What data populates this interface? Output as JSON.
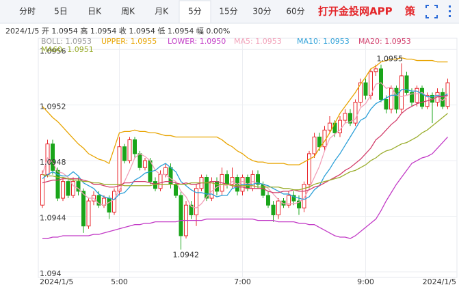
{
  "tabs": [
    "分时",
    "5日",
    "日K",
    "周K",
    "月K",
    "5分",
    "15分",
    "30分",
    "60分"
  ],
  "active_tab": 5,
  "app_link": "打开金投网APP",
  "strategy": "策",
  "info": "2024/1/5  开 1.0954  高 1.0954  收 1.0954  低 1.0954  幅 0.00%",
  "boll_label": "BOLL: 1.0953",
  "chart_data": {
    "type": "candlestick",
    "up_color": "#e8262b",
    "down_color": "#1aa51a",
    "grid": true,
    "ylim": [
      1.09397,
      1.09568
    ],
    "yticks": [
      1.094,
      1.0944,
      1.0948,
      1.0952,
      1.0956
    ],
    "high_label": "1.0955",
    "low_label": "1.0942",
    "categories": [
      "2024/1/5",
      null,
      null,
      null,
      null,
      null,
      null,
      null,
      null,
      null,
      null,
      null,
      null,
      null,
      null,
      "5:00",
      null,
      null,
      null,
      null,
      null,
      null,
      null,
      null,
      null,
      null,
      null,
      null,
      null,
      null,
      null,
      null,
      null,
      null,
      null,
      null,
      null,
      null,
      null,
      "7:00",
      null,
      null,
      null,
      null,
      null,
      null,
      null,
      null,
      null,
      null,
      null,
      null,
      null,
      null,
      null,
      null,
      null,
      null,
      null,
      null,
      null,
      null,
      null,
      "9:00",
      null,
      null,
      null,
      null,
      null,
      null,
      null,
      null,
      null,
      null,
      null,
      null,
      null,
      null,
      null,
      "2024/1/5"
    ],
    "ohlc": [
      [
        1.09448,
        1.09473,
        1.09446,
        1.0947
      ],
      [
        1.0947,
        1.09495,
        1.09468,
        1.09492
      ],
      [
        1.09492,
        1.09495,
        1.0947,
        1.09473
      ],
      [
        1.09473,
        1.09475,
        1.09451,
        1.09453
      ],
      [
        1.09453,
        1.09468,
        1.09451,
        1.09465
      ],
      [
        1.09465,
        1.09468,
        1.09453,
        1.09455
      ],
      [
        1.09455,
        1.09468,
        1.09453,
        1.09465
      ],
      [
        1.09465,
        1.09468,
        1.09455,
        1.09458
      ],
      [
        1.09458,
        1.0946,
        1.09428,
        1.09433
      ],
      [
        1.09433,
        1.09453,
        1.09431,
        1.09451
      ],
      [
        1.09451,
        1.09458,
        1.09448,
        1.09455
      ],
      [
        1.09455,
        1.09458,
        1.09446,
        1.09448
      ],
      [
        1.09448,
        1.09455,
        1.09446,
        1.09453
      ],
      [
        1.09453,
        1.09455,
        1.09438,
        1.09443
      ],
      [
        1.09443,
        1.0946,
        1.09441,
        1.09458
      ],
      [
        1.09458,
        1.09497,
        1.09455,
        1.0949
      ],
      [
        1.0949,
        1.09492,
        1.09478,
        1.0948
      ],
      [
        1.0948,
        1.09497,
        1.09478,
        1.09495
      ],
      [
        1.09495,
        1.09497,
        1.09482,
        1.09485
      ],
      [
        1.09485,
        1.09487,
        1.09473,
        1.09475
      ],
      [
        1.09475,
        1.09482,
        1.09473,
        1.0948
      ],
      [
        1.0948,
        1.09482,
        1.09463,
        1.09465
      ],
      [
        1.09465,
        1.09468,
        1.09458,
        1.0946
      ],
      [
        1.0946,
        1.09473,
        1.09458,
        1.0947
      ],
      [
        1.0947,
        1.09478,
        1.09468,
        1.09475
      ],
      [
        1.09475,
        1.09478,
        1.0946,
        1.09463
      ],
      [
        1.09463,
        1.09465,
        1.09453,
        1.09455
      ],
      [
        1.09455,
        1.09458,
        1.09416,
        1.09426
      ],
      [
        1.09426,
        1.09451,
        1.09424,
        1.09448
      ],
      [
        1.09448,
        1.09451,
        1.09438,
        1.09441
      ],
      [
        1.09441,
        1.09463,
        1.09433,
        1.0946
      ],
      [
        1.0946,
        1.0947,
        1.09458,
        1.09468
      ],
      [
        1.09468,
        1.0947,
        1.09451,
        1.09453
      ],
      [
        1.09453,
        1.09468,
        1.09451,
        1.09465
      ],
      [
        1.09465,
        1.09468,
        1.09455,
        1.09458
      ],
      [
        1.09458,
        1.09475,
        1.09455,
        1.0947
      ],
      [
        1.0947,
        1.09473,
        1.0946,
        1.09463
      ],
      [
        1.09463,
        1.09475,
        1.0946,
        1.09468
      ],
      [
        1.09468,
        1.0947,
        1.09455,
        1.09458
      ],
      [
        1.09458,
        1.0947,
        1.09455,
        1.09468
      ],
      [
        1.09468,
        1.0947,
        1.09458,
        1.0946
      ],
      [
        1.0946,
        1.09473,
        1.09458,
        1.0947
      ],
      [
        1.0947,
        1.09473,
        1.0946,
        1.09463
      ],
      [
        1.09463,
        1.09465,
        1.09453,
        1.09455
      ],
      [
        1.09455,
        1.09458,
        1.09446,
        1.09448
      ],
      [
        1.09448,
        1.09451,
        1.09436,
        1.09441
      ],
      [
        1.09441,
        1.09453,
        1.09438,
        1.09451
      ],
      [
        1.09451,
        1.09453,
        1.09446,
        1.09448
      ],
      [
        1.09448,
        1.09458,
        1.09446,
        1.09455
      ],
      [
        1.09455,
        1.09458,
        1.09448,
        1.09451
      ],
      [
        1.09451,
        1.09455,
        1.09441,
        1.09446
      ],
      [
        1.09446,
        1.09465,
        1.09443,
        1.09463
      ],
      [
        1.09463,
        1.09487,
        1.0946,
        1.09485
      ],
      [
        1.09485,
        1.095,
        1.09482,
        1.09497
      ],
      [
        1.09497,
        1.095,
        1.09487,
        1.0949
      ],
      [
        1.0949,
        1.09505,
        1.09487,
        1.09502
      ],
      [
        1.09502,
        1.09512,
        1.095,
        1.09507
      ],
      [
        1.09507,
        1.09509,
        1.09497,
        1.095
      ],
      [
        1.095,
        1.09512,
        1.09497,
        1.09509
      ],
      [
        1.09509,
        1.09517,
        1.09507,
        1.09514
      ],
      [
        1.09514,
        1.09517,
        1.09505,
        1.09507
      ],
      [
        1.09507,
        1.09524,
        1.09505,
        1.09522
      ],
      [
        1.09522,
        1.09539,
        1.09519,
        1.09536
      ],
      [
        1.09536,
        1.09539,
        1.09524,
        1.09527
      ],
      [
        1.09527,
        1.09546,
        1.09524,
        1.09544
      ],
      [
        1.09544,
        1.09549,
        1.09541,
        1.09546
      ],
      [
        1.09546,
        1.09549,
        1.09522,
        1.09524
      ],
      [
        1.09524,
        1.09527,
        1.09514,
        1.09517
      ],
      [
        1.09517,
        1.09534,
        1.09514,
        1.09532
      ],
      [
        1.09532,
        1.09534,
        1.09514,
        1.09517
      ],
      [
        1.09517,
        1.0955,
        1.09514,
        1.09541
      ],
      [
        1.09541,
        1.09544,
        1.09527,
        1.09529
      ],
      [
        1.09529,
        1.09532,
        1.09519,
        1.09522
      ],
      [
        1.09522,
        1.09534,
        1.09519,
        1.09532
      ],
      [
        1.09532,
        1.09534,
        1.09517,
        1.09519
      ],
      [
        1.09519,
        1.09529,
        1.09517,
        1.09527
      ],
      [
        1.09527,
        1.09529,
        1.09507,
        1.09522
      ],
      [
        1.09522,
        1.09532,
        1.09519,
        1.09529
      ],
      [
        1.09529,
        1.09532,
        1.09517,
        1.09519
      ],
      [
        1.09519,
        1.09539,
        1.09517,
        1.09536
      ]
    ],
    "series": [
      {
        "name": "UPPER: 1.0955",
        "color": "#e8a400",
        "values": [
          1.09519,
          1.09515,
          1.09511,
          1.09508,
          1.09504,
          1.095,
          1.09496,
          1.09492,
          1.09489,
          1.09485,
          1.09483,
          1.09481,
          1.0948,
          1.09478,
          1.09489,
          1.095,
          1.09501,
          1.09501,
          1.09502,
          1.09501,
          1.09501,
          1.095,
          1.095,
          1.09499,
          1.09498,
          1.09498,
          1.09497,
          1.09497,
          1.09497,
          1.09497,
          1.09497,
          1.09497,
          1.09497,
          1.09497,
          1.09497,
          1.09495,
          1.09492,
          1.0949,
          1.09487,
          1.09485,
          1.09482,
          1.0948,
          1.09479,
          1.09479,
          1.09478,
          1.09478,
          1.09478,
          1.09478,
          1.09477,
          1.09477,
          1.09477,
          1.09479,
          1.09481,
          1.09483,
          1.09489,
          1.09494,
          1.095,
          1.09507,
          1.09514,
          1.09519,
          1.09524,
          1.09529,
          1.09535,
          1.0954,
          1.09546,
          1.09548,
          1.09551,
          1.09552,
          1.09553,
          1.09553,
          1.09554,
          1.09553,
          1.09553,
          1.09552,
          1.09552,
          1.09552,
          1.09552,
          1.09551,
          1.09551,
          1.09551
        ]
      },
      {
        "name": "LOWER: 1.0950",
        "color": "#c23ac6",
        "values": [
          1.09424,
          1.09424,
          1.09425,
          1.09425,
          1.09426,
          1.09426,
          1.09426,
          1.09426,
          1.09426,
          1.09426,
          1.09427,
          1.09427,
          1.09428,
          1.09429,
          1.0943,
          1.09431,
          1.09432,
          1.09433,
          1.09434,
          1.09434,
          1.09435,
          1.09435,
          1.09436,
          1.09436,
          1.09436,
          1.09436,
          1.09436,
          1.09437,
          1.09437,
          1.09437,
          1.09437,
          1.09437,
          1.09438,
          1.09438,
          1.09438,
          1.09438,
          1.09438,
          1.09438,
          1.09438,
          1.09438,
          1.09438,
          1.09438,
          1.09437,
          1.09437,
          1.09437,
          1.09437,
          1.09436,
          1.09436,
          1.09436,
          1.09436,
          1.09435,
          1.09435,
          1.09434,
          1.09434,
          1.09432,
          1.0943,
          1.09428,
          1.09426,
          1.09425,
          1.09425,
          1.09424,
          1.09426,
          1.09429,
          1.09432,
          1.09435,
          1.09438,
          1.09444,
          1.09451,
          1.09457,
          1.09463,
          1.09468,
          1.09473,
          1.09478,
          1.0948,
          1.09482,
          1.09483,
          1.09485,
          1.09489,
          1.09493,
          1.09497
        ]
      },
      {
        "name": "MA5: 1.0953",
        "color": "#f2a0b8",
        "values": [
          1.0947,
          1.09482,
          1.09479,
          1.09472,
          1.09471,
          1.09468,
          1.09462,
          1.0946,
          1.09456,
          1.09453,
          1.09453,
          1.09449,
          1.09448,
          1.0945,
          1.09452,
          1.09459,
          1.09465,
          1.09473,
          1.09482,
          1.09485,
          1.09483,
          1.0948,
          1.09473,
          1.0947,
          1.0947,
          1.09467,
          1.09465,
          1.09458,
          1.09454,
          1.09447,
          1.09446,
          1.09449,
          1.09454,
          1.09458,
          1.09461,
          1.09463,
          1.09462,
          1.09465,
          1.09463,
          1.09465,
          1.09463,
          1.09465,
          1.09464,
          1.09463,
          1.0946,
          1.09456,
          1.09452,
          1.09449,
          1.09449,
          1.09449,
          1.0945,
          1.09453,
          1.0946,
          1.09468,
          1.09476,
          1.09487,
          1.09496,
          1.09499,
          1.09502,
          1.09507,
          1.09508,
          1.0951,
          1.09518,
          1.09521,
          1.09527,
          1.09535,
          1.09536,
          1.09532,
          1.09533,
          1.09527,
          1.09526,
          1.09527,
          1.09528,
          1.09528,
          1.09529,
          1.09526,
          1.09524,
          1.09526,
          1.09523,
          1.09527
        ]
      },
      {
        "name": "MA10: 1.0953",
        "color": "#2a9fd8",
        "values": [
          1.09467,
          1.0947,
          1.09472,
          1.0947,
          1.09469,
          1.09469,
          1.09472,
          1.09469,
          1.09464,
          1.09462,
          1.0946,
          1.09456,
          1.09454,
          1.09453,
          1.09452,
          1.09456,
          1.09457,
          1.09461,
          1.09466,
          1.09468,
          1.09471,
          1.09472,
          1.09473,
          1.09476,
          1.09478,
          1.09475,
          1.09472,
          1.09465,
          1.09462,
          1.09459,
          1.09457,
          1.09457,
          1.09456,
          1.09456,
          1.09454,
          1.09455,
          1.09455,
          1.0946,
          1.09461,
          1.09463,
          1.09463,
          1.09463,
          1.09464,
          1.09463,
          1.09462,
          1.0946,
          1.09458,
          1.09456,
          1.09456,
          1.09454,
          1.09453,
          1.09452,
          1.09454,
          1.09459,
          1.09462,
          1.09469,
          1.09474,
          1.0948,
          1.09485,
          1.09491,
          1.09497,
          1.09503,
          1.09509,
          1.09511,
          1.09517,
          1.09521,
          1.09523,
          1.09525,
          1.09527,
          1.09527,
          1.09531,
          1.09531,
          1.0953,
          1.0953,
          1.09528,
          1.09526,
          1.09526,
          1.09527,
          1.09526,
          1.09528
        ]
      },
      {
        "name": "MA20: 1.0953",
        "color": "#d23c6a",
        "values": [
          1.09464,
          1.09465,
          1.09466,
          1.09466,
          1.09467,
          1.09467,
          1.09467,
          1.09467,
          1.09466,
          1.09465,
          1.09463,
          1.09463,
          1.09462,
          1.09461,
          1.09461,
          1.09462,
          1.09464,
          1.09464,
          1.09465,
          1.09465,
          1.09465,
          1.09464,
          1.09463,
          1.09464,
          1.09465,
          1.09465,
          1.09464,
          1.09463,
          1.09464,
          1.09463,
          1.09463,
          1.09464,
          1.09464,
          1.09465,
          1.09465,
          1.09464,
          1.09463,
          1.09462,
          1.09461,
          1.09461,
          1.0946,
          1.0946,
          1.0946,
          1.0946,
          1.09458,
          1.09457,
          1.09457,
          1.09458,
          1.09458,
          1.09459,
          1.09458,
          1.09458,
          1.09459,
          1.09461,
          1.09462,
          1.09464,
          1.09466,
          1.09468,
          1.0947,
          1.09473,
          1.09475,
          1.09478,
          1.09481,
          1.09485,
          1.09489,
          1.09495,
          1.09498,
          1.09502,
          1.09506,
          1.09509,
          1.09514,
          1.09517,
          1.09519,
          1.09521,
          1.09522,
          1.09523,
          1.09524,
          1.09526,
          1.09526,
          1.09527
        ]
      },
      {
        "name": "MA60: 1.0951",
        "color": "#9aad2c",
        "values": [
          1.0947,
          1.09469,
          1.09469,
          1.09468,
          1.09468,
          1.09467,
          1.09466,
          1.09466,
          1.09465,
          1.09465,
          1.09464,
          1.09464,
          1.09463,
          1.09463,
          1.09463,
          1.09463,
          1.09462,
          1.09462,
          1.09462,
          1.09462,
          1.09462,
          1.09462,
          1.09463,
          1.09463,
          1.09463,
          1.09463,
          1.09463,
          1.09463,
          1.09463,
          1.09464,
          1.09464,
          1.09464,
          1.09464,
          1.09464,
          1.09463,
          1.09463,
          1.09463,
          1.09462,
          1.09462,
          1.09462,
          1.09462,
          1.09462,
          1.09461,
          1.09461,
          1.09461,
          1.09461,
          1.09461,
          1.0946,
          1.0946,
          1.09459,
          1.09459,
          1.0946,
          1.09461,
          1.09463,
          1.09464,
          1.09465,
          1.09466,
          1.09467,
          1.09468,
          1.0947,
          1.09472,
          1.09473,
          1.09475,
          1.09477,
          1.0948,
          1.09482,
          1.09485,
          1.09487,
          1.09488,
          1.0949,
          1.09492,
          1.09493,
          1.09495,
          1.09497,
          1.095,
          1.09502,
          1.09505,
          1.09508,
          1.09511,
          1.09514
        ]
      }
    ]
  }
}
